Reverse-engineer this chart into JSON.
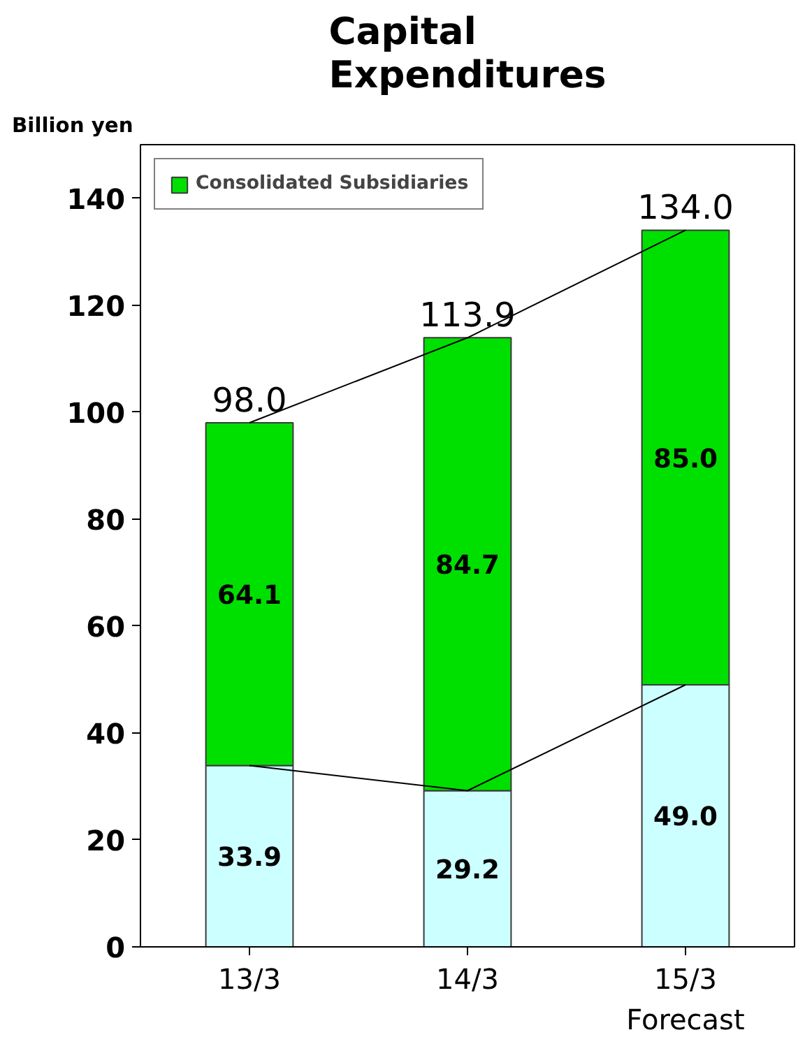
{
  "chart_data": {
    "type": "bar",
    "title": "Capital\nExpenditures",
    "ylabel": "Billion yen",
    "categories": [
      "13/3",
      "14/3",
      "15/3\nForecast"
    ],
    "stacked": true,
    "ylim": [
      0,
      150
    ],
    "yticks": [
      0,
      20,
      40,
      60,
      80,
      100,
      120,
      140
    ],
    "grid": false,
    "legend": "top left",
    "totals": [
      "98.0",
      "113.9",
      "134.0"
    ],
    "series": [
      {
        "color": "#ccffff",
        "values": [
          33.9,
          29.2,
          49.0
        ],
        "value_labels": [
          "33.9",
          "29.2",
          "49.0"
        ]
      },
      {
        "name": "Consolidated Subsidiaries",
        "color": "#00e000",
        "values": [
          64.1,
          84.7,
          85.0
        ],
        "value_labels": [
          "64.1",
          "84.7",
          "85.0"
        ]
      },
      {
        "type": "line",
        "color": "#000000",
        "values": [
          33.9,
          29.2,
          49.0
        ],
        "marker": "none",
        "line_style": "solid"
      },
      {
        "type": "line",
        "color": "#000000",
        "values": [
          98.0,
          113.9,
          134.0
        ],
        "marker": "none",
        "line_style": "solid"
      }
    ]
  }
}
